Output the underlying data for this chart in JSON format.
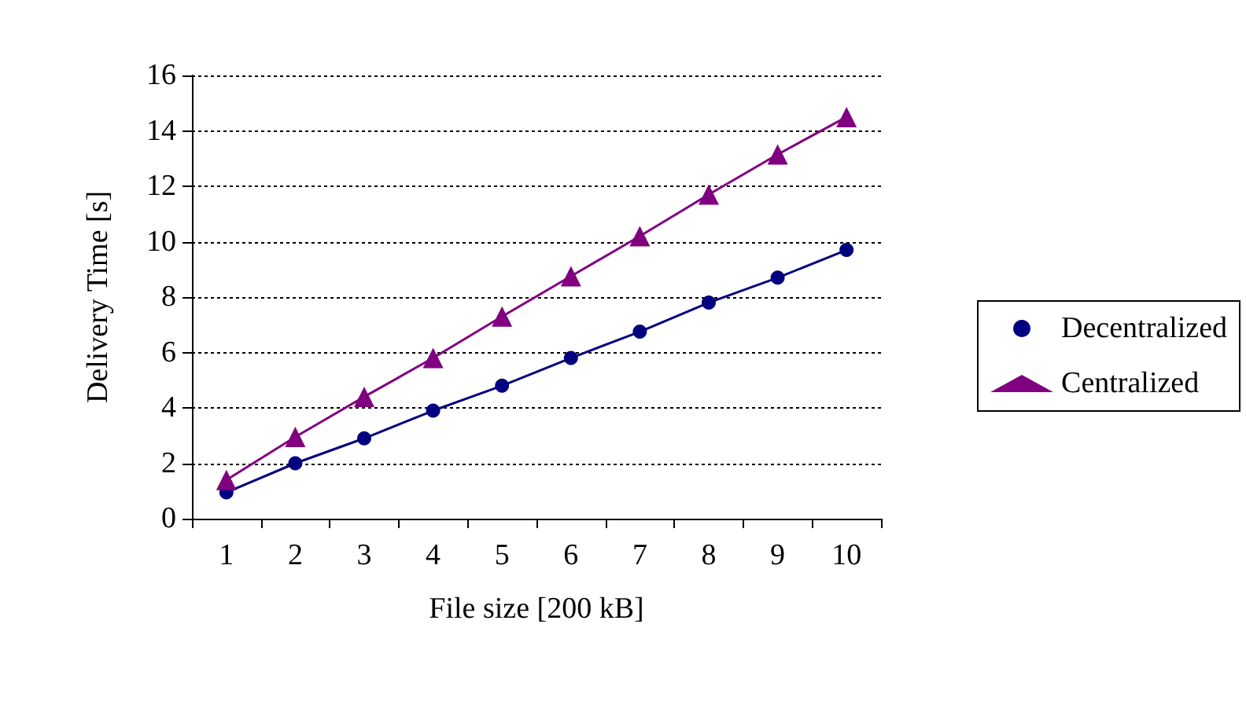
{
  "chart_data": {
    "type": "line",
    "xlabel": "File size [200 kB]",
    "ylabel": "Delivery Time [s]",
    "categories": [
      "1",
      "2",
      "3",
      "4",
      "5",
      "6",
      "7",
      "8",
      "9",
      "10"
    ],
    "series": [
      {
        "name": "Decentralized",
        "color": "#000080",
        "marker": "circle",
        "values": [
          0.95,
          2.0,
          2.9,
          3.9,
          4.8,
          5.8,
          6.75,
          7.8,
          8.7,
          9.7
        ]
      },
      {
        "name": "Centralized",
        "color": "#800080",
        "marker": "triangle",
        "values": [
          1.4,
          2.95,
          4.4,
          5.8,
          7.3,
          8.75,
          10.2,
          11.7,
          13.15,
          14.5
        ]
      }
    ],
    "ylim": [
      0,
      16
    ],
    "yticks": [
      0,
      2,
      4,
      6,
      8,
      10,
      12,
      14,
      16
    ],
    "grid": "y",
    "legend": "right",
    "line_style": "solid"
  }
}
